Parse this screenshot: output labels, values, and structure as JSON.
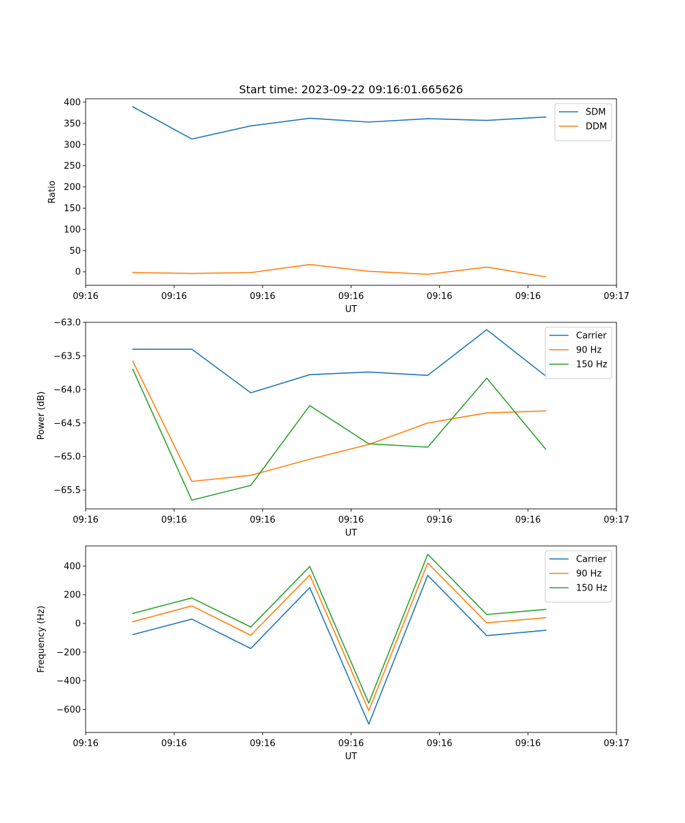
{
  "figure_title": "Start time: 2023-09-22 09:16:01.665626",
  "colors": {
    "blue": "#1f77b4",
    "orange": "#ff7f0e",
    "green": "#2ca02c"
  },
  "chart_data": [
    {
      "type": "line",
      "title": "Start time: 2023-09-22 09:16:01.665626",
      "xlabel": "UT",
      "ylabel": "Ratio",
      "x": [
        1,
        2,
        3,
        4,
        5,
        6,
        7,
        8
      ],
      "xlim": [
        0.2,
        9.2
      ],
      "xticks": [
        0.2,
        1.7,
        3.2,
        4.7,
        6.2,
        7.7,
        9.2
      ],
      "xtick_labels": [
        "09:16",
        "09:16",
        "09:16",
        "09:16",
        "09:16",
        "09:16",
        "09:17"
      ],
      "ylim": [
        -32,
        408
      ],
      "yticks": [
        0,
        50,
        100,
        150,
        200,
        250,
        300,
        350,
        400
      ],
      "ytick_labels": [
        "0",
        "50",
        "100",
        "150",
        "200",
        "250",
        "300",
        "350",
        "400"
      ],
      "legend_position": "top-right",
      "series": [
        {
          "name": "SDM",
          "color": "#1f77b4",
          "values": [
            389,
            313,
            344,
            362,
            353,
            361,
            357,
            365
          ]
        },
        {
          "name": "DDM",
          "color": "#ff7f0e",
          "values": [
            -2,
            -4,
            -2,
            17,
            1,
            -6,
            11,
            -12
          ]
        }
      ]
    },
    {
      "type": "line",
      "title": "",
      "xlabel": "UT",
      "ylabel": "Power (dB)",
      "x": [
        1,
        2,
        3,
        4,
        5,
        6,
        7,
        8
      ],
      "xlim": [
        0.2,
        9.2
      ],
      "xticks": [
        0.2,
        1.7,
        3.2,
        4.7,
        6.2,
        7.7,
        9.2
      ],
      "xtick_labels": [
        "09:16",
        "09:16",
        "09:16",
        "09:16",
        "09:16",
        "09:16",
        "09:17"
      ],
      "ylim": [
        -65.78,
        -63.0
      ],
      "yticks": [
        -65.5,
        -65.0,
        -64.5,
        -64.0,
        -63.5,
        -63.0
      ],
      "ytick_labels": [
        "−65.5",
        "−65.0",
        "−64.5",
        "−64.0",
        "−63.5",
        "−63.0"
      ],
      "legend_position": "top-right",
      "series": [
        {
          "name": "Carrier",
          "color": "#1f77b4",
          "values": [
            -63.4,
            -63.4,
            -64.05,
            -63.78,
            -63.74,
            -63.79,
            -63.11,
            -63.8
          ]
        },
        {
          "name": "90 Hz",
          "color": "#ff7f0e",
          "values": [
            -63.58,
            -65.37,
            -65.28,
            -65.04,
            -64.82,
            -64.5,
            -64.35,
            -64.32
          ]
        },
        {
          "name": "150 Hz",
          "color": "#2ca02c",
          "values": [
            -63.7,
            -65.65,
            -65.43,
            -64.24,
            -64.81,
            -64.86,
            -63.83,
            -64.89
          ]
        }
      ]
    },
    {
      "type": "line",
      "title": "",
      "xlabel": "UT",
      "ylabel": "Frequency (Hz)",
      "x": [
        1,
        2,
        3,
        4,
        5,
        6,
        7,
        8
      ],
      "xlim": [
        0.2,
        9.2
      ],
      "xticks": [
        0.2,
        1.7,
        3.2,
        4.7,
        6.2,
        7.7,
        9.2
      ],
      "xtick_labels": [
        "09:16",
        "09:16",
        "09:16",
        "09:16",
        "09:16",
        "09:16",
        "09:17"
      ],
      "ylim": [
        -760,
        540
      ],
      "yticks": [
        -600,
        -400,
        -200,
        0,
        200,
        400
      ],
      "ytick_labels": [
        "−600",
        "−400",
        "−200",
        "0",
        "200",
        "400"
      ],
      "legend_position": "top-right",
      "series": [
        {
          "name": "Carrier",
          "color": "#1f77b4",
          "values": [
            -78,
            30,
            -175,
            250,
            -702,
            335,
            -85,
            -48
          ]
        },
        {
          "name": "90 Hz",
          "color": "#ff7f0e",
          "values": [
            12,
            122,
            -83,
            337,
            -608,
            421,
            4,
            40
          ]
        },
        {
          "name": "150 Hz",
          "color": "#2ca02c",
          "values": [
            70,
            177,
            -25,
            397,
            -555,
            482,
            62,
            98
          ]
        }
      ]
    }
  ]
}
